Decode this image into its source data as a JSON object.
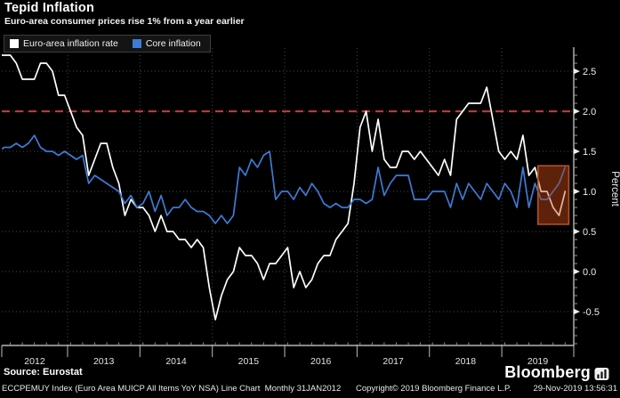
{
  "header": {
    "title": "Tepid Inflation",
    "subtitle": "Euro-area consumer prices rise 1% from a year earlier"
  },
  "legend": [
    {
      "label": "Euro-area inflation rate",
      "color": "#ffffff"
    },
    {
      "label": "Core inflation",
      "color": "#3d7bd4"
    }
  ],
  "source_note": "Source: Eurostat",
  "brand": {
    "name": "Bloomberg"
  },
  "footer": {
    "left": "ECCPEMUY Index (Euro Area MUICP All Items YoY NSA) Line Chart  Monthly 31JAN2012",
    "center": "Copyright© 2019 Bloomberg Finance L.P.",
    "right": "29-Nov-2019 13:56:31"
  },
  "chart_data": {
    "type": "line",
    "title": "Tepid Inflation",
    "subtitle": "Euro-area consumer prices rise 1% from a year earlier",
    "ylabel": "Percent",
    "x_start": "2012-01",
    "x_end": "2019-11",
    "x_year_labels": [
      "2012",
      "2013",
      "2014",
      "2015",
      "2016",
      "2017",
      "2018",
      "2019"
    ],
    "ylim": [
      -0.92,
      2.79
    ],
    "yticks": [
      -0.5,
      0.0,
      0.5,
      1.0,
      1.5,
      2.0,
      2.5
    ],
    "grid": true,
    "legend_position": "top-left",
    "reference_line": {
      "value": 2.0,
      "color": "#b23b3b",
      "style": "dashed"
    },
    "highlight_box": {
      "from_month_index": 89.5,
      "to_month_index": 94.6,
      "y_low": 0.59,
      "y_high": 1.32,
      "border_color": "#b5521f",
      "fill_color": "rgba(178,62,16,0.38)"
    },
    "series": [
      {
        "name": "Euro-area inflation rate",
        "color": "#ffffff",
        "values": [
          2.7,
          2.7,
          2.7,
          2.6,
          2.4,
          2.4,
          2.4,
          2.6,
          2.6,
          2.5,
          2.2,
          2.2,
          2.0,
          1.8,
          1.7,
          1.2,
          1.4,
          1.6,
          1.6,
          1.3,
          1.1,
          0.7,
          0.9,
          0.8,
          0.8,
          0.7,
          0.5,
          0.7,
          0.5,
          0.5,
          0.4,
          0.4,
          0.3,
          0.4,
          0.3,
          -0.2,
          -0.6,
          -0.3,
          -0.1,
          0.0,
          0.3,
          0.2,
          0.2,
          0.1,
          -0.1,
          0.1,
          0.1,
          0.2,
          0.3,
          -0.2,
          0.0,
          -0.2,
          -0.1,
          0.1,
          0.2,
          0.2,
          0.4,
          0.5,
          0.6,
          1.1,
          1.8,
          2.0,
          1.5,
          1.9,
          1.4,
          1.3,
          1.3,
          1.5,
          1.5,
          1.4,
          1.5,
          1.4,
          1.3,
          1.2,
          1.4,
          1.2,
          1.9,
          2.0,
          2.1,
          2.1,
          2.1,
          2.3,
          1.9,
          1.5,
          1.4,
          1.5,
          1.4,
          1.7,
          1.2,
          1.3,
          1.0,
          1.0,
          0.8,
          0.7,
          1.0
        ]
      },
      {
        "name": "Core inflation",
        "color": "#3d7bd4",
        "values": [
          1.5,
          1.55,
          1.55,
          1.6,
          1.55,
          1.6,
          1.7,
          1.55,
          1.5,
          1.5,
          1.45,
          1.5,
          1.45,
          1.4,
          1.45,
          1.1,
          1.2,
          1.15,
          1.1,
          1.05,
          1.0,
          0.85,
          0.95,
          0.8,
          0.85,
          1.0,
          0.75,
          0.95,
          0.7,
          0.8,
          0.8,
          0.9,
          0.8,
          0.75,
          0.75,
          0.7,
          0.6,
          0.7,
          0.6,
          0.7,
          1.3,
          1.2,
          1.4,
          1.3,
          1.45,
          1.5,
          0.9,
          1.0,
          1.0,
          0.9,
          1.05,
          0.95,
          1.1,
          1.0,
          0.85,
          0.8,
          0.85,
          0.8,
          0.8,
          0.9,
          0.9,
          0.85,
          0.9,
          1.3,
          0.95,
          1.1,
          1.2,
          1.2,
          1.2,
          0.9,
          0.9,
          0.9,
          1.0,
          1.0,
          1.0,
          0.8,
          1.1,
          0.9,
          1.1,
          1.0,
          0.9,
          1.1,
          1.0,
          0.9,
          1.1,
          1.0,
          0.8,
          1.3,
          0.8,
          1.1,
          0.9,
          0.9,
          1.0,
          1.1,
          1.3
        ]
      }
    ]
  }
}
